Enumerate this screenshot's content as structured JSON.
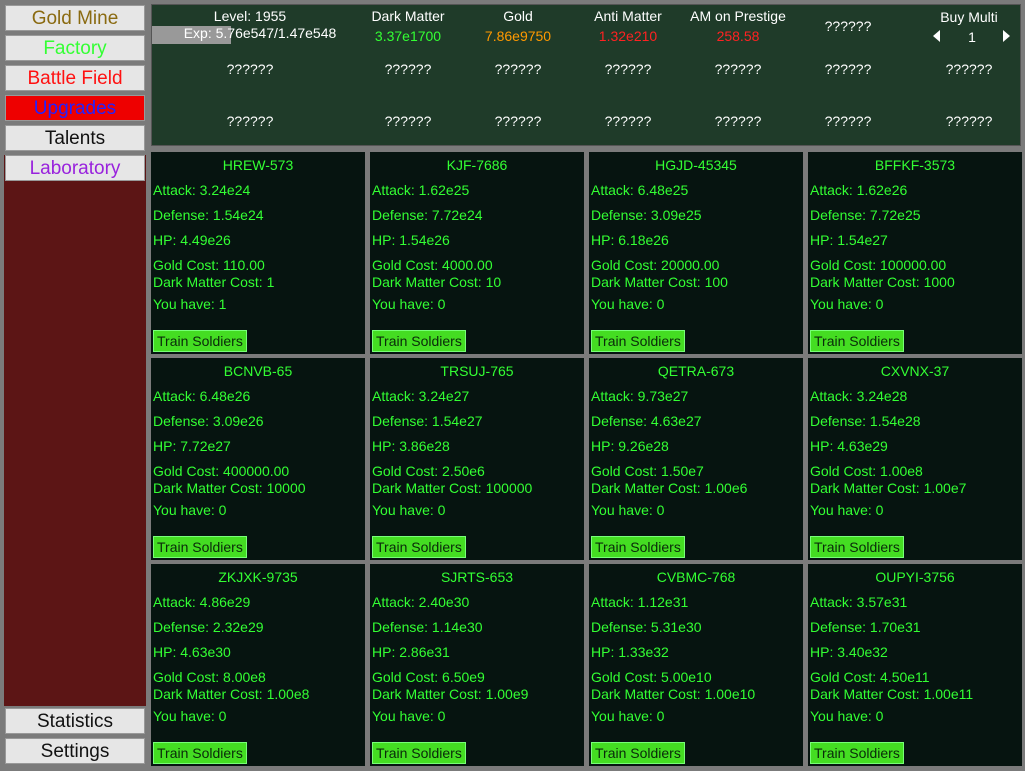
{
  "nav": {
    "top": [
      "Gold Mine",
      "Factory",
      "Battle Field",
      "Upgrades",
      "Talents",
      "Laboratory"
    ],
    "bottom": [
      "Statistics",
      "Settings"
    ]
  },
  "header": {
    "level": "Level: 1955",
    "exp": "Exp: 5.76e547/1.47e548",
    "stats": [
      {
        "label": "Dark Matter",
        "value": "3.37e1700"
      },
      {
        "label": "Gold",
        "value": "7.86e9750"
      },
      {
        "label": "Anti Matter",
        "value": "1.32e210"
      },
      {
        "label": "AM on Prestige",
        "value": "258.58"
      }
    ],
    "hidden": "??????",
    "buy_multi": {
      "label": "Buy Multi",
      "value": "1"
    },
    "rows": [
      [
        "??????",
        "??????",
        "??????",
        "??????",
        "??????",
        "??????",
        "??????"
      ],
      [
        "??????",
        "??????",
        "??????",
        "??????",
        "??????",
        "??????",
        "??????"
      ]
    ]
  },
  "units": [
    {
      "name": "HREW-573",
      "attack": "Attack: 3.24e24",
      "defense": "Defense: 1.54e24",
      "hp": "HP: 4.49e26",
      "gold_cost": "Gold Cost: 110.00",
      "dm_cost": "Dark Matter Cost: 1",
      "have": "You have: 1",
      "button": "Train Soldiers"
    },
    {
      "name": "KJF-7686",
      "attack": "Attack: 1.62e25",
      "defense": "Defense: 7.72e24",
      "hp": "HP: 1.54e26",
      "gold_cost": "Gold Cost: 4000.00",
      "dm_cost": "Dark Matter Cost: 10",
      "have": "You have: 0",
      "button": "Train Soldiers"
    },
    {
      "name": "HGJD-45345",
      "attack": "Attack: 6.48e25",
      "defense": "Defense: 3.09e25",
      "hp": "HP: 6.18e26",
      "gold_cost": "Gold Cost: 20000.00",
      "dm_cost": "Dark Matter Cost: 100",
      "have": "You have: 0",
      "button": "Train Soldiers"
    },
    {
      "name": "BFFKF-3573",
      "attack": "Attack: 1.62e26",
      "defense": "Defense: 7.72e25",
      "hp": "HP: 1.54e27",
      "gold_cost": "Gold Cost: 100000.00",
      "dm_cost": "Dark Matter Cost: 1000",
      "have": "You have: 0",
      "button": "Train Soldiers"
    },
    {
      "name": "BCNVB-65",
      "attack": "Attack: 6.48e26",
      "defense": "Defense: 3.09e26",
      "hp": "HP: 7.72e27",
      "gold_cost": "Gold Cost: 400000.00",
      "dm_cost": "Dark Matter Cost: 10000",
      "have": "You have: 0",
      "button": "Train Soldiers"
    },
    {
      "name": "TRSUJ-765",
      "attack": "Attack: 3.24e27",
      "defense": "Defense: 1.54e27",
      "hp": "HP: 3.86e28",
      "gold_cost": "Gold Cost: 2.50e6",
      "dm_cost": "Dark Matter Cost: 100000",
      "have": "You have: 0",
      "button": "Train Soldiers"
    },
    {
      "name": "QETRA-673",
      "attack": "Attack: 9.73e27",
      "defense": "Defense: 4.63e27",
      "hp": "HP: 9.26e28",
      "gold_cost": "Gold Cost: 1.50e7",
      "dm_cost": "Dark Matter Cost: 1.00e6",
      "have": "You have: 0",
      "button": "Train Soldiers"
    },
    {
      "name": "CXVNX-37",
      "attack": "Attack: 3.24e28",
      "defense": "Defense: 1.54e28",
      "hp": "HP: 4.63e29",
      "gold_cost": "Gold Cost: 1.00e8",
      "dm_cost": "Dark Matter Cost: 1.00e7",
      "have": "You have: 0",
      "button": "Train Soldiers"
    },
    {
      "name": "ZKJXK-9735",
      "attack": "Attack: 4.86e29",
      "defense": "Defense: 2.32e29",
      "hp": "HP: 4.63e30",
      "gold_cost": "Gold Cost: 8.00e8",
      "dm_cost": "Dark Matter Cost: 1.00e8",
      "have": "You have: 0",
      "button": "Train Soldiers"
    },
    {
      "name": "SJRTS-653",
      "attack": "Attack: 2.40e30",
      "defense": "Defense: 1.14e30",
      "hp": "HP: 2.86e31",
      "gold_cost": "Gold Cost: 6.50e9",
      "dm_cost": "Dark Matter Cost: 1.00e9",
      "have": "You have: 0",
      "button": "Train Soldiers"
    },
    {
      "name": "CVBMC-768",
      "attack": "Attack: 1.12e31",
      "defense": "Defense: 5.31e30",
      "hp": "HP: 1.33e32",
      "gold_cost": "Gold Cost: 5.00e10",
      "dm_cost": "Dark Matter Cost: 1.00e10",
      "have": "You have: 0",
      "button": "Train Soldiers"
    },
    {
      "name": "OUPYI-3756",
      "attack": "Attack: 3.57e31",
      "defense": "Defense: 1.70e31",
      "hp": "HP: 3.40e32",
      "gold_cost": "Gold Cost: 4.50e11",
      "dm_cost": "Dark Matter Cost: 1.00e11",
      "have": "You have: 0",
      "button": "Train Soldiers"
    }
  ]
}
